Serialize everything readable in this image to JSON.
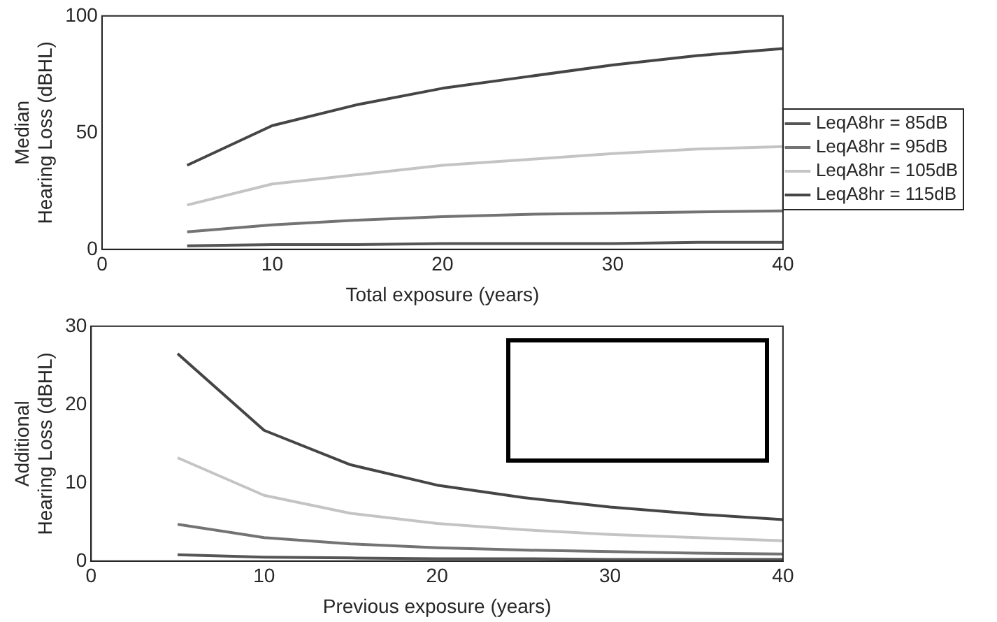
{
  "chart_data": [
    {
      "type": "line",
      "xlabel": "Total exposure (years)",
      "ylabel": "Median\nHearing Loss (dBHL)",
      "x": [
        5,
        10,
        15,
        20,
        25,
        30,
        35,
        40
      ],
      "xlim": [
        0,
        40
      ],
      "xticks": [
        0,
        10,
        20,
        30,
        40
      ],
      "ylim": [
        0,
        100
      ],
      "yticks": [
        0,
        50,
        100
      ],
      "grid": false,
      "legend": "right",
      "marker": "none",
      "line_style": "solid",
      "series": [
        {
          "name": "LeqA8hr = 85dB",
          "color": "#555555",
          "values": [
            1.5,
            2,
            2,
            2.5,
            2.5,
            2.5,
            3,
            3
          ]
        },
        {
          "name": "LeqA8hr = 95dB",
          "color": "#737373",
          "values": [
            7.5,
            10.5,
            12.5,
            14,
            15,
            15.5,
            16,
            16.5
          ]
        },
        {
          "name": "LeqA8hr = 105dB",
          "color": "#c4c4c4",
          "values": [
            19,
            28,
            32,
            36,
            38.5,
            41,
            43,
            44
          ]
        },
        {
          "name": "LeqA8hr = 115dB",
          "color": "#454545",
          "values": [
            36,
            53,
            62,
            69,
            74,
            79,
            83,
            86
          ]
        }
      ]
    },
    {
      "type": "line",
      "xlabel": "Previous exposure (years)",
      "ylabel": "Additional\nHearing Loss (dBHL)",
      "x": [
        5,
        10,
        15,
        20,
        25,
        30,
        35,
        40
      ],
      "xlim": [
        0,
        40
      ],
      "xticks": [
        0,
        10,
        20,
        30,
        40
      ],
      "ylim": [
        0,
        30
      ],
      "yticks": [
        0,
        10,
        20,
        30
      ],
      "grid": false,
      "marker": "none",
      "line_style": "solid",
      "series": [
        {
          "color": "#555555",
          "values": [
            0.8,
            0.5,
            0.4,
            0.3,
            0.3,
            0.2,
            0.2,
            0.2
          ]
        },
        {
          "color": "#737373",
          "values": [
            4.7,
            3,
            2.2,
            1.7,
            1.4,
            1.2,
            1,
            0.9
          ]
        },
        {
          "color": "#c4c4c4",
          "values": [
            13.2,
            8.4,
            6.1,
            4.8,
            4,
            3.4,
            3,
            2.6
          ]
        },
        {
          "color": "#454545",
          "values": [
            26.5,
            16.7,
            12.3,
            9.7,
            8.1,
            6.9,
            6,
            5.3
          ]
        }
      ]
    }
  ]
}
